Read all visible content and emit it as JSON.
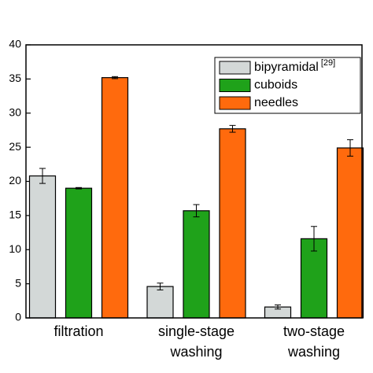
{
  "chart_data": {
    "type": "bar",
    "categories": [
      [
        "filtration"
      ],
      [
        "single-stage",
        "washing"
      ],
      [
        "two-stage",
        "washing"
      ]
    ],
    "series": [
      {
        "name": "bipyramidal",
        "name_sup": "[29]",
        "color": "#d3d8d7",
        "values": [
          20.8,
          4.6,
          1.6
        ],
        "errors": [
          1.1,
          0.5,
          0.3
        ]
      },
      {
        "name": "cuboids",
        "color": "#1fa21a",
        "values": [
          19.0,
          15.7,
          11.6
        ],
        "errors": [
          0.1,
          0.9,
          1.8
        ]
      },
      {
        "name": "needles",
        "color": "#ff6a0d",
        "values": [
          35.2,
          27.7,
          24.9
        ],
        "errors": [
          0.15,
          0.5,
          1.2
        ]
      }
    ],
    "ylim": [
      0,
      40
    ],
    "yticks": [
      0,
      5,
      10,
      15,
      20,
      25,
      30,
      35,
      40
    ],
    "legend": "upper right"
  }
}
